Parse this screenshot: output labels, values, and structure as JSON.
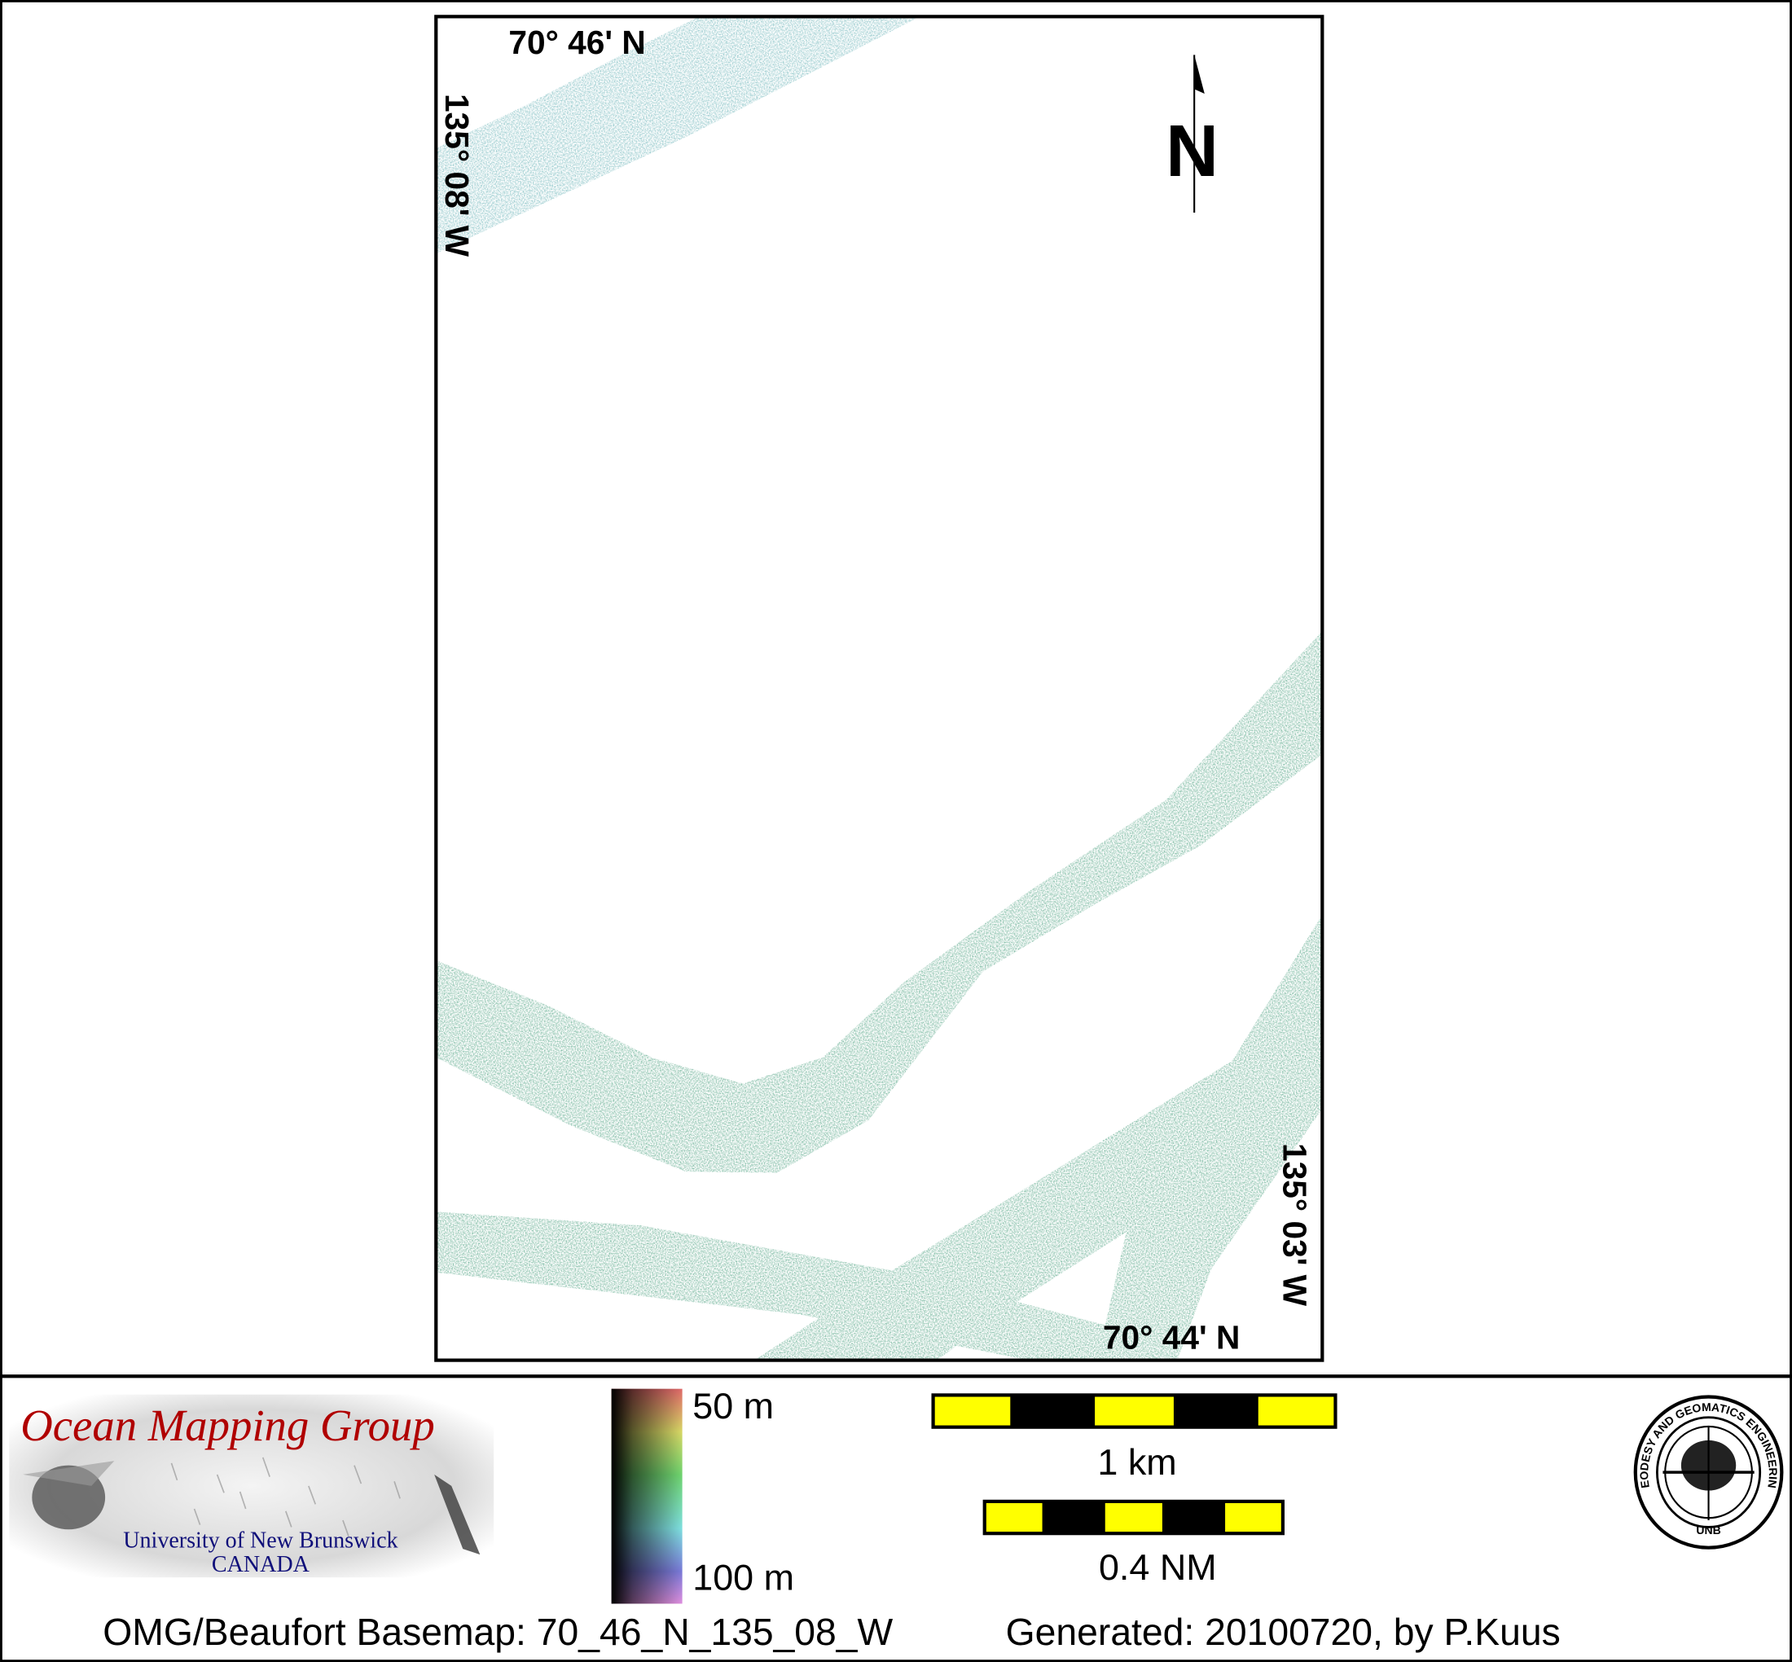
{
  "map": {
    "top_lat_label": "70° 46' N",
    "left_lon_label": "135° 08' W",
    "bottom_lat_label": "70° 44' N",
    "right_lon_label": "135° 03' W",
    "north_label": "N",
    "swath_color": "#5aa88a",
    "top_swath_color": "#74b8bc"
  },
  "legend": {
    "colorbar_top": "50 m",
    "colorbar_bottom": "100 m",
    "scale_km": "1 km",
    "scale_nm": "0.4 NM",
    "scale_colors": [
      "#ffff00",
      "#000000"
    ]
  },
  "logos": {
    "omg_title": "Ocean Mapping Group",
    "omg_university": "University of New Brunswick",
    "omg_country": "CANADA",
    "seal_text": "GEODESY AND GEOMATICS ENGINEERING",
    "seal_bottom": "UNB"
  },
  "footer": {
    "basemap": "OMG/Beaufort Basemap: 70_46_N_135_08_W",
    "generated": "Generated: 20100720, by P.Kuus"
  }
}
